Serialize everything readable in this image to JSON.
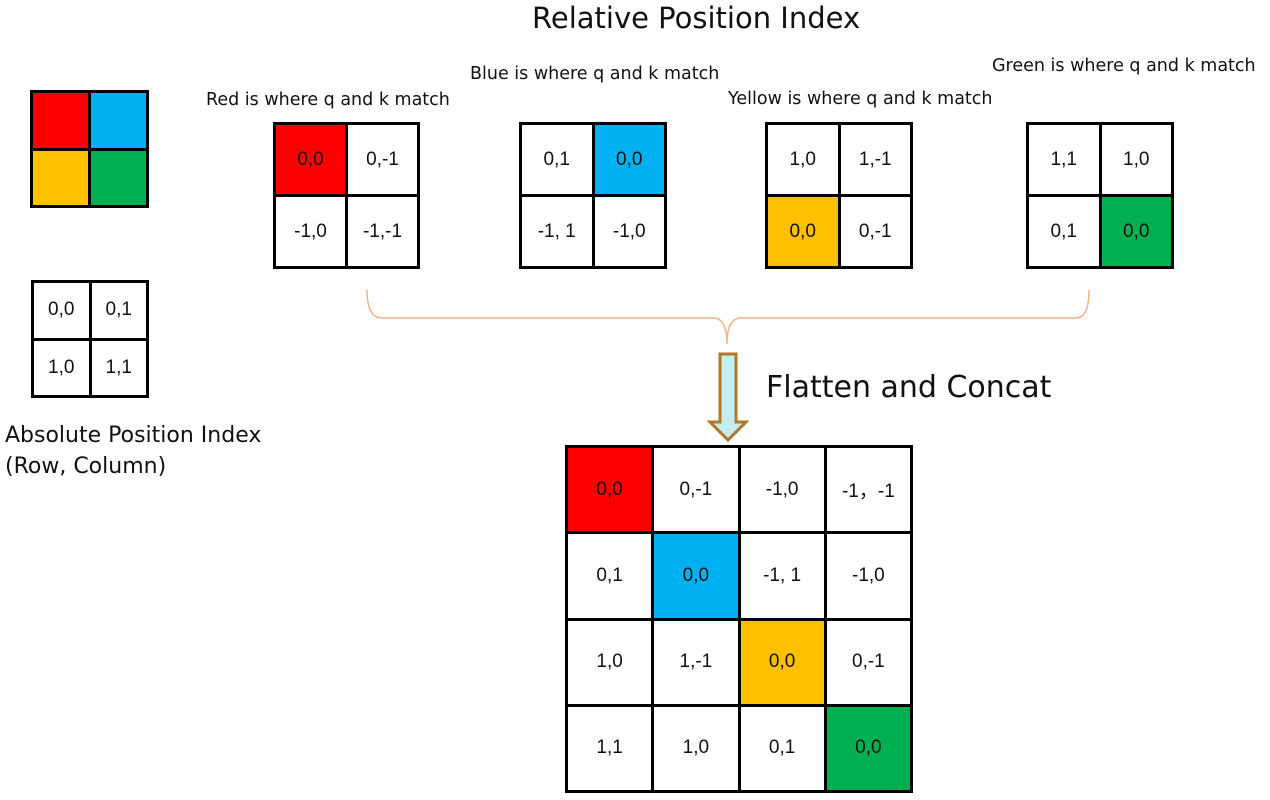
{
  "colors": {
    "red": "#ff0000",
    "blue": "#00b0f0",
    "yellow": "#ffc000",
    "green": "#00b050",
    "bracket": "#f4b183",
    "arrow_fill": "#c5eef0",
    "arrow_stroke": "#b0782b"
  },
  "title": "Relative Position Index",
  "legend_colors": [
    "red",
    "blue",
    "yellow",
    "green"
  ],
  "absolute_grid": {
    "cells": [
      "0,0",
      "0,1",
      "1,0",
      "1,1"
    ],
    "label_line1": "Absolute Position Index",
    "label_line2": "(Row, Column)"
  },
  "relative_grids": [
    {
      "caption": "Red is where q and k match",
      "cells": [
        "0,0",
        "0,-1",
        "-1,0",
        "-1,-1"
      ],
      "highlight": [
        0,
        "red"
      ]
    },
    {
      "caption": "Blue is where q and k match",
      "cells": [
        "0,1",
        "0,0",
        "-1, 1",
        "-1,0"
      ],
      "highlight": [
        1,
        "blue"
      ]
    },
    {
      "caption": "Yellow is where q and k match",
      "cells": [
        "1,0",
        "1,-1",
        "0,0",
        "0,-1"
      ],
      "highlight": [
        2,
        "yellow"
      ]
    },
    {
      "caption": "Green is where q and k match",
      "cells": [
        "1,1",
        "1,0",
        "0,1",
        "0,0"
      ],
      "highlight": [
        3,
        "green"
      ]
    }
  ],
  "flatten_label": "Flatten and Concat",
  "concat_grid": {
    "cells": [
      "0,0",
      "0,-1",
      "-1,0",
      "-1，-1",
      "0,1",
      "0,0",
      "-1, 1",
      "-1,0",
      "1,0",
      "1,-1",
      "0,0",
      "0,-1",
      "1,1",
      "1,0",
      "0,1",
      "0,0"
    ],
    "highlights": [
      [
        0,
        "red"
      ],
      [
        5,
        "blue"
      ],
      [
        10,
        "yellow"
      ],
      [
        15,
        "green"
      ]
    ]
  }
}
